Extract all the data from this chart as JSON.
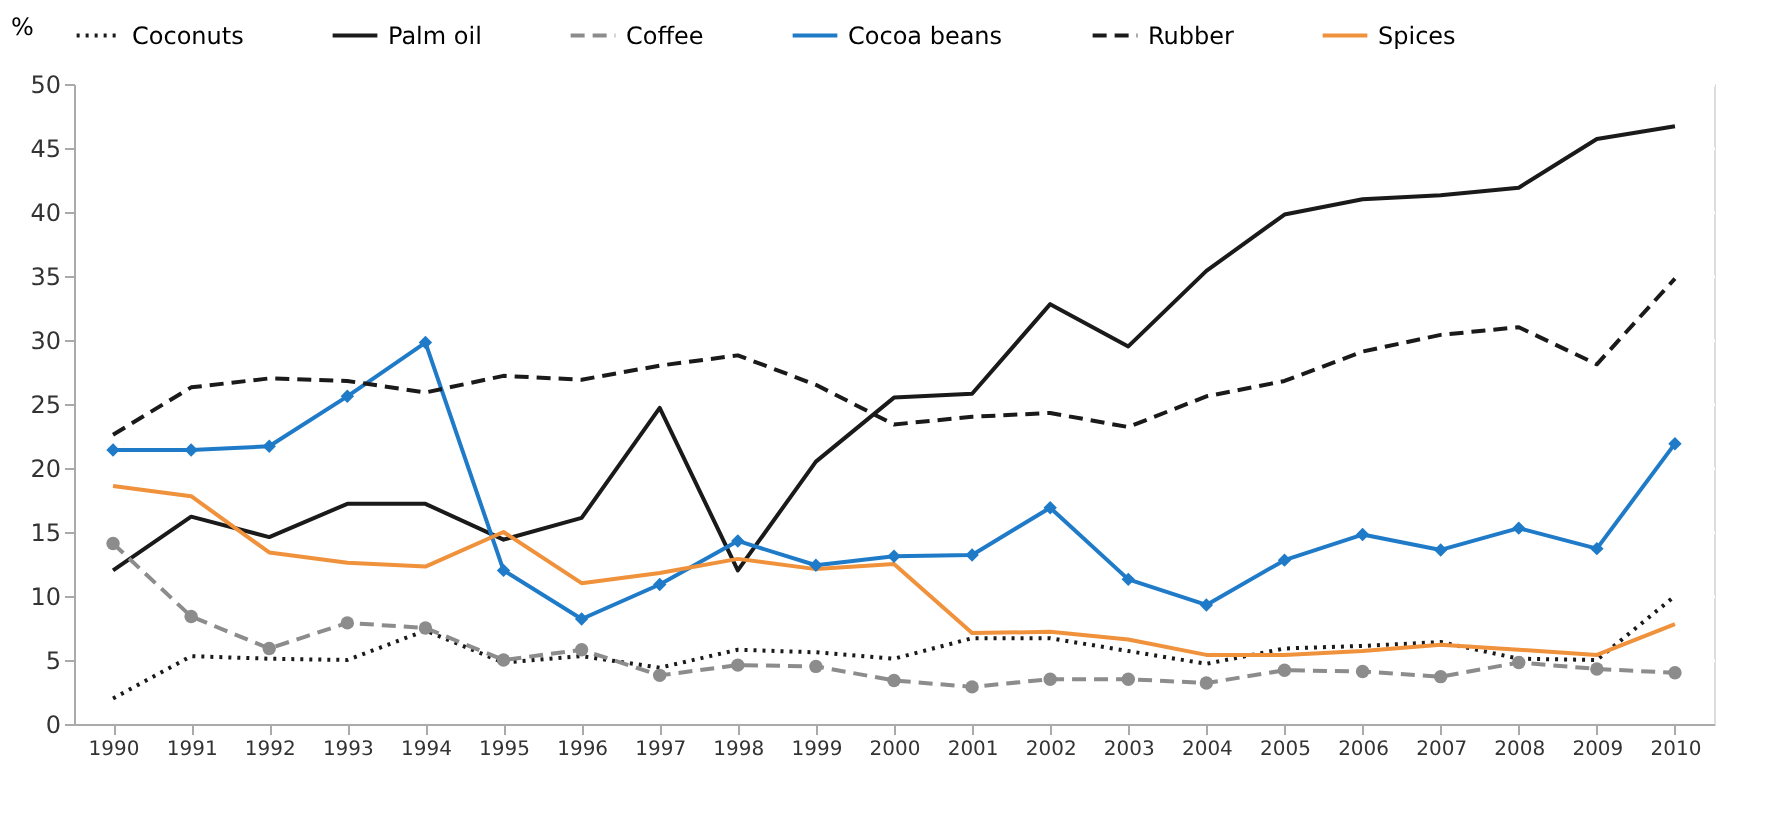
{
  "chart_data": {
    "type": "line",
    "ylabel": "%",
    "categories": [
      "1990",
      "1991",
      "1992",
      "1993",
      "1994",
      "1995",
      "1996",
      "1997",
      "1998",
      "1999",
      "2000",
      "2001",
      "2002",
      "2003",
      "2004",
      "2005",
      "2006",
      "2007",
      "2008",
      "2009",
      "2010"
    ],
    "series": [
      {
        "name": "Coconuts",
        "color": "#1a1a1a",
        "line_style": "dotted",
        "marker": "none",
        "values": [
          2,
          5.3,
          5.1,
          5,
          7.3,
          4.8,
          5.3,
          4.4,
          5.8,
          5.6,
          5.1,
          6.7,
          6.7,
          5.7,
          4.7,
          5.9,
          6.1,
          6.4,
          5.1,
          5,
          10
        ]
      },
      {
        "name": "Palm oil",
        "color": "#1a1a1a",
        "line_style": "solid",
        "marker": "none",
        "values": [
          12,
          16.2,
          14.6,
          17.2,
          17.2,
          14.4,
          16.1,
          24.7,
          12,
          20.5,
          25.5,
          25.8,
          32.8,
          29.5,
          35.4,
          39.8,
          41,
          41.3,
          41.9,
          45.7,
          46.7
        ]
      },
      {
        "name": "Coffee",
        "color": "#8c8c8c",
        "line_style": "dashed",
        "marker": "circle",
        "values": [
          14.1,
          8.4,
          5.9,
          7.9,
          7.5,
          5,
          5.8,
          3.8,
          4.6,
          4.5,
          3.4,
          2.9,
          3.5,
          3.5,
          3.2,
          4.2,
          4.1,
          3.7,
          4.8,
          4.3,
          4
        ]
      },
      {
        "name": "Cocoa beans",
        "color": "#1f7bc8",
        "line_style": "solid",
        "marker": "diamond",
        "values": [
          21.4,
          21.4,
          21.7,
          25.6,
          29.8,
          12,
          8.2,
          10.9,
          14.3,
          12.4,
          13.1,
          13.2,
          16.9,
          11.3,
          9.3,
          12.8,
          14.8,
          13.6,
          15.3,
          13.7,
          21.9
        ]
      },
      {
        "name": "Rubber",
        "color": "#1a1a1a",
        "line_style": "dashed",
        "marker": "none",
        "values": [
          22.6,
          26.3,
          27,
          26.8,
          25.9,
          27.2,
          26.9,
          28,
          28.8,
          26.5,
          23.4,
          24,
          24.3,
          23.2,
          25.6,
          26.8,
          29.1,
          30.4,
          31,
          28.1,
          34.8
        ]
      },
      {
        "name": "Spices",
        "color": "#f0913c",
        "line_style": "solid",
        "marker": "none",
        "values": [
          18.6,
          17.8,
          13.4,
          12.6,
          12.3,
          15,
          11,
          11.8,
          12.9,
          12.1,
          12.5,
          7.1,
          7.2,
          6.6,
          5.4,
          5.4,
          5.7,
          6.2,
          5.8,
          5.4,
          7.8
        ]
      }
    ],
    "ylim": [
      0,
      50
    ],
    "yticks": [
      0,
      5,
      10,
      15,
      20,
      25,
      30,
      35,
      40,
      45,
      50
    ],
    "grid": "y",
    "legend": "top"
  }
}
